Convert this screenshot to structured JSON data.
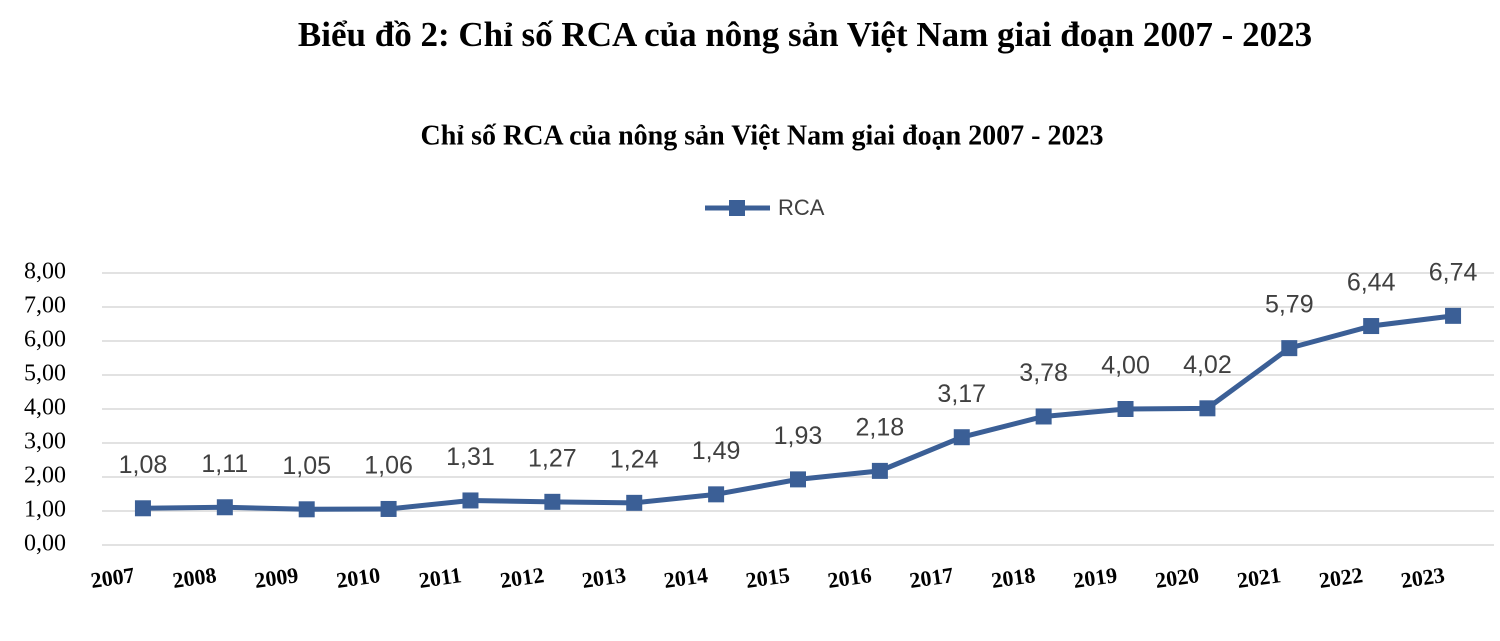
{
  "heading": "Biểu đồ 2:  Chỉ số RCA của nông sản Việt Nam giai đoạn 2007 - 2023",
  "chart_data": {
    "type": "line",
    "title": "Chỉ số RCA của nông sản Việt Nam giai đoạn 2007 - 2023",
    "categories": [
      "2007",
      "2008",
      "2009",
      "2010",
      "2011",
      "2012",
      "2013",
      "2014",
      "2015",
      "2016",
      "2017",
      "2018",
      "2019",
      "2020",
      "2021",
      "2022",
      "2023"
    ],
    "series": [
      {
        "name": "RCA",
        "color": "#3b5f96",
        "values": [
          1.08,
          1.11,
          1.05,
          1.06,
          1.31,
          1.27,
          1.24,
          1.49,
          1.93,
          2.18,
          3.17,
          3.78,
          4.0,
          4.02,
          5.79,
          6.44,
          6.74
        ],
        "value_labels": [
          "1,08",
          "1,11",
          "1,05",
          "1,06",
          "1,31",
          "1,27",
          "1,24",
          "1,49",
          "1,93",
          "2,18",
          "3,17",
          "3,78",
          "4,00",
          "4,02",
          "5,79",
          "6,44",
          "6,74"
        ]
      }
    ],
    "ylim": [
      0,
      8
    ],
    "yticks": [
      {
        "value": 0,
        "label": "0,00"
      },
      {
        "value": 1,
        "label": "1,00"
      },
      {
        "value": 2,
        "label": "2,00"
      },
      {
        "value": 3,
        "label": "3,00"
      },
      {
        "value": 4,
        "label": "4,00"
      },
      {
        "value": 5,
        "label": "5,00"
      },
      {
        "value": 6,
        "label": "6,00"
      },
      {
        "value": 7,
        "label": "7,00"
      },
      {
        "value": 8,
        "label": "8,00"
      }
    ],
    "grid": true,
    "legend": "top"
  }
}
